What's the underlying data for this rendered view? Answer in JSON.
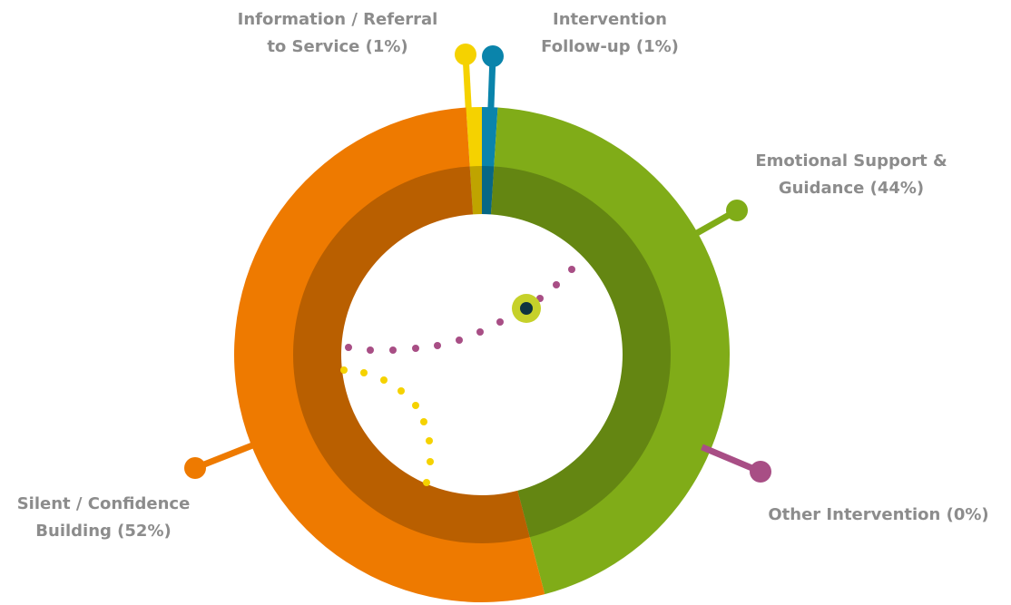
{
  "chart_data": {
    "type": "donut",
    "categories": [
      [
        "Information / Referral",
        "to Service (1%)"
      ],
      [
        "Intervention",
        "Follow-up (1%)"
      ],
      [
        "Emotional Support &",
        "Guidance (44%)"
      ],
      [
        "Other Intervention (0%)"
      ],
      [
        "Silent / Confidence",
        "Building (52%)"
      ]
    ],
    "values": [
      1,
      1,
      44,
      0,
      52
    ],
    "colors": [
      "#f5d200",
      "#0a84ab",
      "#80ac18",
      "#a84e85",
      "#ee7a00"
    ]
  }
}
